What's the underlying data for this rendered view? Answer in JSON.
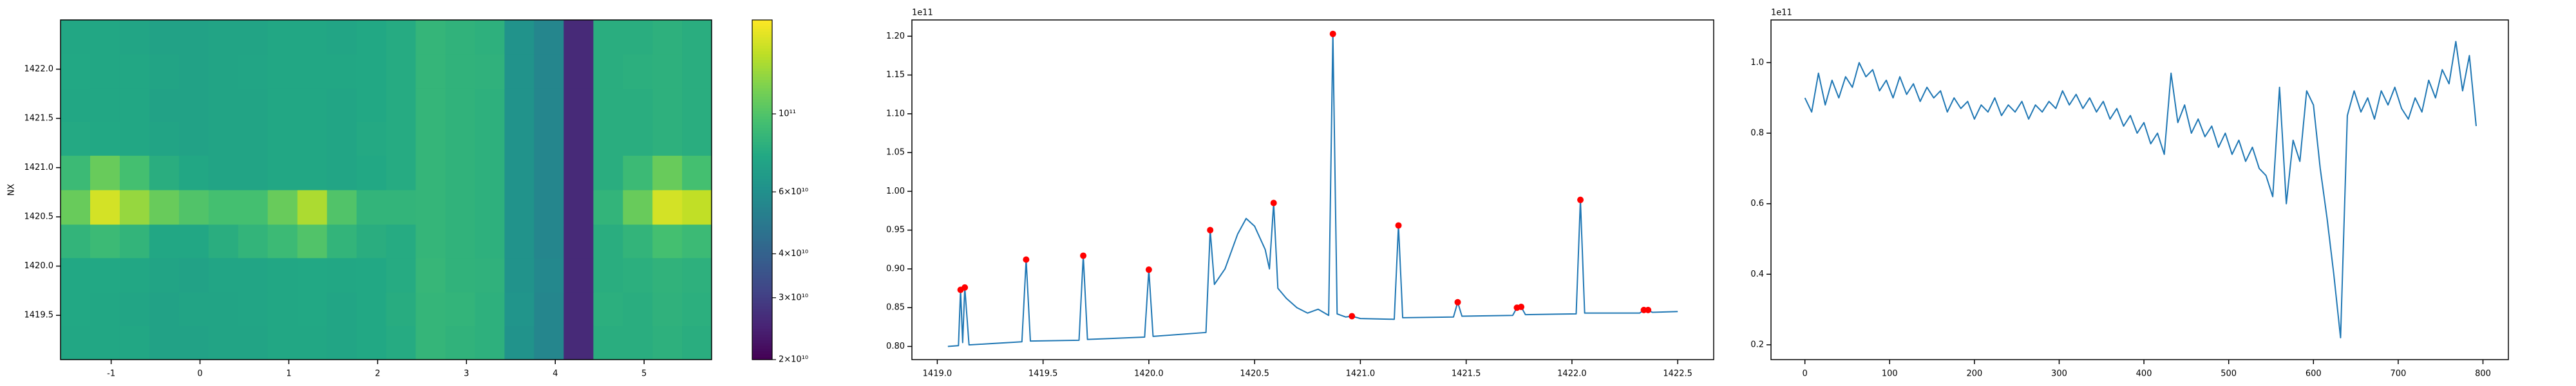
{
  "chart_data": [
    {
      "type": "heatmap",
      "ylabel": "NX",
      "x": [
        -1.403,
        -1.07,
        -0.737,
        -0.404,
        -0.07,
        0.263,
        0.596,
        0.929,
        1.263,
        1.596,
        1.929,
        2.262,
        2.595,
        2.929,
        3.262,
        3.595,
        3.928,
        4.261,
        4.595,
        4.928,
        5.261,
        5.594
      ],
      "y": [
        1419.22,
        1419.57,
        1419.91,
        1420.26,
        1420.6,
        1420.95,
        1421.3,
        1421.64,
        1421.98,
        1422.33
      ],
      "z": [
        [
          75000000000.0,
          75000000000.0,
          75000000000.0,
          72000000000.0,
          72000000000.0,
          73000000000.0,
          73000000000.0,
          75000000000.0,
          75000000000.0,
          74000000000.0,
          76000000000.0,
          78000000000.0,
          86000000000.0,
          84000000000.0,
          82000000000.0,
          62000000000.0,
          55000000000.0,
          26000000000.0,
          80000000000.0,
          80000000000.0,
          82000000000.0,
          80000000000.0
        ],
        [
          76000000000.0,
          75000000000.0,
          74000000000.0,
          72000000000.0,
          73000000000.0,
          73000000000.0,
          74000000000.0,
          75000000000.0,
          76000000000.0,
          74000000000.0,
          76000000000.0,
          79000000000.0,
          86000000000.0,
          85000000000.0,
          82000000000.0,
          63000000000.0,
          55000000000.0,
          26000000000.0,
          81000000000.0,
          80000000000.0,
          83000000000.0,
          81000000000.0
        ],
        [
          76000000000.0,
          76000000000.0,
          75000000000.0,
          73000000000.0,
          72000000000.0,
          74000000000.0,
          74000000000.0,
          75000000000.0,
          76000000000.0,
          75000000000.0,
          76000000000.0,
          78000000000.0,
          87000000000.0,
          84000000000.0,
          83000000000.0,
          62000000000.0,
          56000000000.0,
          26000000000.0,
          80000000000.0,
          81000000000.0,
          84000000000.0,
          82000000000.0
        ],
        [
          85000000000.0,
          90000000000.0,
          85000000000.0,
          75000000000.0,
          75000000000.0,
          80000000000.0,
          85000000000.0,
          90000000000.0,
          100000000000.0,
          85000000000.0,
          80000000000.0,
          78000000000.0,
          86000000000.0,
          84000000000.0,
          82000000000.0,
          62000000000.0,
          55000000000.0,
          26000000000.0,
          80000000000.0,
          85000000000.0,
          95000000000.0,
          90000000000.0
        ],
        [
          110000000000.0,
          160000000000.0,
          130000000000.0,
          110000000000.0,
          100000000000.0,
          95000000000.0,
          95000000000.0,
          110000000000.0,
          140000000000.0,
          100000000000.0,
          85000000000.0,
          85000000000.0,
          86000000000.0,
          84000000000.0,
          82000000000.0,
          62000000000.0,
          55000000000.0,
          26000000000.0,
          85000000000.0,
          110000000000.0,
          160000000000.0,
          150000000000.0
        ],
        [
          90000000000.0,
          110000000000.0,
          95000000000.0,
          80000000000.0,
          75000000000.0,
          73000000000.0,
          73000000000.0,
          75000000000.0,
          75000000000.0,
          74000000000.0,
          76000000000.0,
          78000000000.0,
          86000000000.0,
          84000000000.0,
          82000000000.0,
          62000000000.0,
          55000000000.0,
          26000000000.0,
          80000000000.0,
          90000000000.0,
          110000000000.0,
          95000000000.0
        ],
        [
          77000000000.0,
          76000000000.0,
          75000000000.0,
          73000000000.0,
          72000000000.0,
          73000000000.0,
          73000000000.0,
          75000000000.0,
          75000000000.0,
          74000000000.0,
          77000000000.0,
          78000000000.0,
          86000000000.0,
          84000000000.0,
          82000000000.0,
          62000000000.0,
          55000000000.0,
          26000000000.0,
          80000000000.0,
          80000000000.0,
          82000000000.0,
          80000000000.0
        ],
        [
          75000000000.0,
          75000000000.0,
          75000000000.0,
          72000000000.0,
          72000000000.0,
          73000000000.0,
          73000000000.0,
          75000000000.0,
          75000000000.0,
          74000000000.0,
          76000000000.0,
          78000000000.0,
          86000000000.0,
          84000000000.0,
          82000000000.0,
          62000000000.0,
          55000000000.0,
          26000000000.0,
          80000000000.0,
          80000000000.0,
          82000000000.0,
          80000000000.0
        ],
        [
          76000000000.0,
          75000000000.0,
          75000000000.0,
          73000000000.0,
          72000000000.0,
          73000000000.0,
          74000000000.0,
          75000000000.0,
          75000000000.0,
          75000000000.0,
          76000000000.0,
          78000000000.0,
          86000000000.0,
          84000000000.0,
          83000000000.0,
          62000000000.0,
          55000000000.0,
          26000000000.0,
          80000000000.0,
          81000000000.0,
          82000000000.0,
          80000000000.0
        ],
        [
          75000000000.0,
          75000000000.0,
          74000000000.0,
          72000000000.0,
          72000000000.0,
          73000000000.0,
          73000000000.0,
          75000000000.0,
          75000000000.0,
          74000000000.0,
          76000000000.0,
          78000000000.0,
          86000000000.0,
          84000000000.0,
          82000000000.0,
          62000000000.0,
          55000000000.0,
          26000000000.0,
          80000000000.0,
          80000000000.0,
          82000000000.0,
          80000000000.0
        ]
      ],
      "xlim": [
        -1.57,
        5.76
      ],
      "ylim": [
        1419.05,
        1422.5
      ],
      "xticks": [
        -1,
        0,
        1,
        2,
        3,
        4,
        5
      ],
      "yticks": [
        1419.5,
        {
          "value": 1420,
          "label": "1420.0"
        },
        1420.5,
        {
          "value": 1421,
          "label": "1421.0"
        },
        1421.5,
        {
          "value": 1422,
          "label": "1422.0"
        }
      ],
      "colorbar": {
        "scale": "log",
        "colormap": "viridis",
        "clim": [
          20000000000.0,
          185000000000.0
        ],
        "ticks": [
          {
            "value": 20000000000.0,
            "label": "2×10¹⁰"
          },
          {
            "value": 30000000000.0,
            "label": "3×10¹⁰"
          },
          {
            "value": 40000000000.0,
            "label": "4×10¹⁰"
          },
          {
            "value": 60000000000.0,
            "label": "6×10¹⁰"
          },
          {
            "value": 100000000000.0,
            "label": "10¹¹"
          }
        ]
      }
    },
    {
      "type": "line",
      "offset_text": "1e11",
      "series": [
        {
          "type": "line",
          "color": "#1f77b4",
          "x": [
            1419.05,
            1419.1,
            1419.11,
            1419.12,
            1419.13,
            1419.15,
            1419.4,
            1419.42,
            1419.44,
            1419.67,
            1419.69,
            1419.71,
            1419.98,
            1420.0,
            1420.02,
            1420.27,
            1420.29,
            1420.31,
            1420.36,
            1420.42,
            1420.46,
            1420.5,
            1420.55,
            1420.57,
            1420.59,
            1420.61,
            1420.65,
            1420.7,
            1420.75,
            1420.8,
            1420.85,
            1420.87,
            1420.89,
            1420.93,
            1420.96,
            1421.0,
            1421.16,
            1421.18,
            1421.2,
            1421.44,
            1421.46,
            1421.48,
            1421.72,
            1421.74,
            1421.76,
            1421.78,
            1422.02,
            1422.04,
            1422.06,
            1422.32,
            1422.34,
            1422.36,
            1422.38,
            1422.5
          ],
          "values": [
            0.8,
            0.801,
            0.873,
            0.805,
            0.876,
            0.802,
            0.806,
            0.912,
            0.807,
            0.808,
            0.917,
            0.809,
            0.812,
            0.899,
            0.813,
            0.818,
            0.95,
            0.88,
            0.9,
            0.945,
            0.965,
            0.955,
            0.925,
            0.9,
            0.985,
            0.875,
            0.862,
            0.85,
            0.843,
            0.848,
            0.84,
            1.203,
            0.842,
            0.838,
            0.839,
            0.836,
            0.835,
            0.956,
            0.837,
            0.838,
            0.857,
            0.839,
            0.84,
            0.85,
            0.851,
            0.841,
            0.842,
            0.989,
            0.843,
            0.843,
            0.847,
            0.847,
            0.844,
            0.845
          ]
        },
        {
          "type": "scatter",
          "color": "#ff0000",
          "x": [
            1419.11,
            1419.13,
            1419.42,
            1419.69,
            1420.0,
            1420.29,
            1420.59,
            1420.87,
            1420.96,
            1421.18,
            1421.46,
            1421.74,
            1421.76,
            1422.04,
            1422.34,
            1422.36
          ],
          "values": [
            0.873,
            0.876,
            0.912,
            0.917,
            0.899,
            0.95,
            0.985,
            1.203,
            0.839,
            0.956,
            0.857,
            0.85,
            0.851,
            0.989,
            0.847,
            0.847
          ]
        }
      ],
      "xlim": [
        1418.88,
        1422.67
      ],
      "ylim": [
        0.783,
        1.221
      ],
      "xticks": [
        {
          "value": 1419,
          "label": "1419.0"
        },
        1419.5,
        {
          "value": 1420,
          "label": "1420.0"
        },
        1420.5,
        {
          "value": 1421,
          "label": "1421.0"
        },
        1421.5,
        {
          "value": 1422,
          "label": "1422.0"
        },
        1422.5
      ],
      "yticks": [
        {
          "value": 0.8,
          "label": "0.80"
        },
        {
          "value": 0.85,
          "label": "0.85"
        },
        {
          "value": 0.9,
          "label": "0.90"
        },
        {
          "value": 0.95,
          "label": "0.95"
        },
        {
          "value": 1,
          "label": "1.00"
        },
        {
          "value": 1.05,
          "label": "1.05"
        },
        {
          "value": 1.1,
          "label": "1.10"
        },
        {
          "value": 1.15,
          "label": "1.15"
        },
        {
          "value": 1.2,
          "label": "1.20"
        }
      ]
    },
    {
      "type": "line",
      "offset_text": "1e11",
      "series": [
        {
          "type": "line",
          "color": "#1f77b4",
          "x": [
            0,
            8,
            16,
            24,
            32,
            40,
            48,
            56,
            64,
            72,
            80,
            88,
            96,
            104,
            112,
            120,
            128,
            136,
            144,
            152,
            160,
            168,
            176,
            184,
            192,
            200,
            208,
            216,
            224,
            232,
            240,
            248,
            256,
            264,
            272,
            280,
            288,
            296,
            304,
            312,
            320,
            328,
            336,
            344,
            352,
            360,
            368,
            376,
            384,
            392,
            400,
            408,
            416,
            424,
            432,
            440,
            448,
            456,
            464,
            472,
            480,
            488,
            496,
            504,
            512,
            520,
            528,
            536,
            544,
            552,
            560,
            568,
            576,
            584,
            592,
            600,
            608,
            616,
            624,
            632,
            640,
            648,
            656,
            664,
            672,
            680,
            688,
            696,
            704,
            712,
            720,
            728,
            736,
            744,
            752,
            760,
            768,
            776,
            784,
            792
          ],
          "values": [
            0.9,
            0.86,
            0.97,
            0.88,
            0.95,
            0.9,
            0.96,
            0.93,
            1.0,
            0.96,
            0.98,
            0.92,
            0.95,
            0.9,
            0.96,
            0.91,
            0.94,
            0.89,
            0.93,
            0.9,
            0.92,
            0.86,
            0.9,
            0.87,
            0.89,
            0.84,
            0.88,
            0.86,
            0.9,
            0.85,
            0.88,
            0.86,
            0.89,
            0.84,
            0.88,
            0.86,
            0.89,
            0.87,
            0.92,
            0.88,
            0.91,
            0.87,
            0.9,
            0.86,
            0.89,
            0.84,
            0.87,
            0.82,
            0.85,
            0.8,
            0.83,
            0.77,
            0.8,
            0.74,
            0.97,
            0.83,
            0.88,
            0.8,
            0.84,
            0.79,
            0.82,
            0.76,
            0.8,
            0.74,
            0.78,
            0.72,
            0.76,
            0.7,
            0.68,
            0.62,
            0.93,
            0.6,
            0.78,
            0.72,
            0.92,
            0.88,
            0.7,
            0.56,
            0.4,
            0.22,
            0.85,
            0.92,
            0.86,
            0.9,
            0.84,
            0.92,
            0.88,
            0.93,
            0.87,
            0.84,
            0.9,
            0.86,
            0.95,
            0.9,
            0.98,
            0.94,
            1.06,
            0.92,
            1.02,
            0.82
          ]
        }
      ],
      "xlim": [
        -40,
        830
      ],
      "ylim": [
        0.158,
        1.121
      ],
      "xticks": [
        0,
        100,
        200,
        300,
        400,
        500,
        600,
        700,
        800
      ],
      "yticks": [
        0.2,
        0.4,
        0.6,
        0.8,
        {
          "value": 1,
          "label": "1.0"
        }
      ]
    }
  ]
}
